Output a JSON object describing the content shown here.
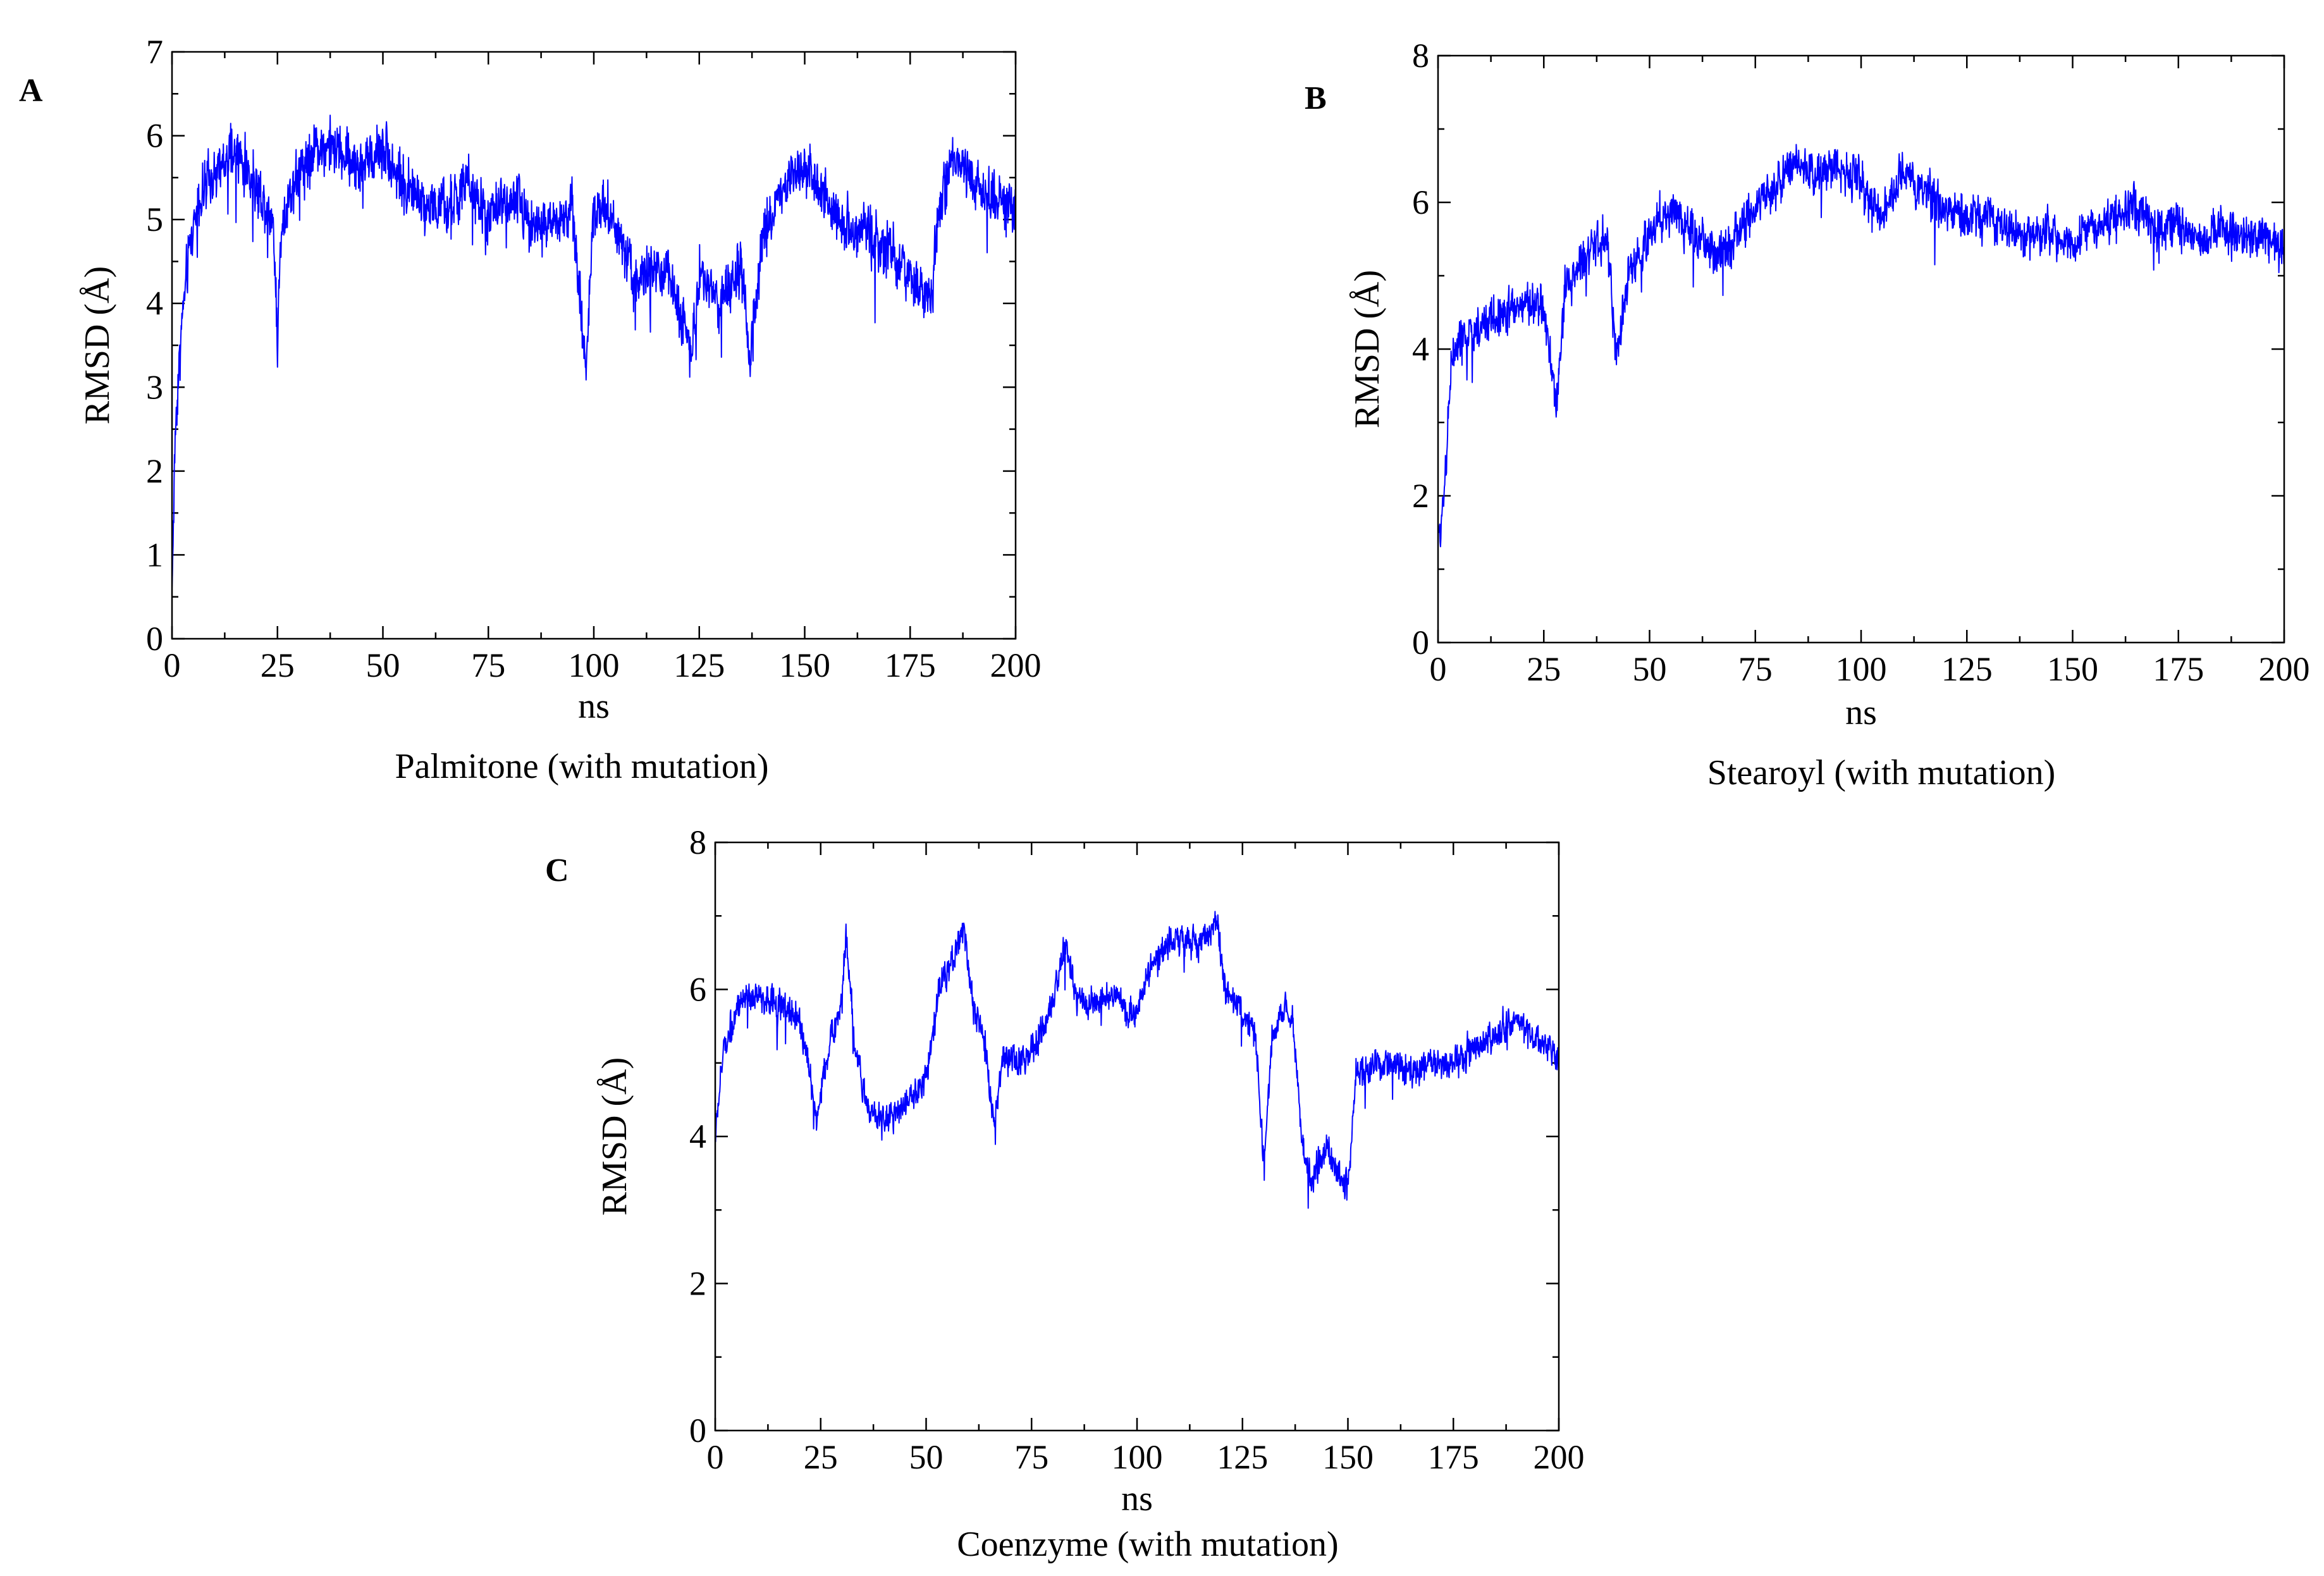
{
  "figure": {
    "panels": [
      {
        "letter": "A",
        "caption": "Palmitone (with mutation)"
      },
      {
        "letter": "B",
        "caption": "Stearoyl (with mutation)"
      },
      {
        "letter": "C",
        "caption": "Coenzyme (with mutation)"
      }
    ]
  },
  "chart_data": [
    {
      "type": "line",
      "panel": "A",
      "title": "Palmitone (with mutation)",
      "xlabel": "ns",
      "ylabel": "RMSD (Å)",
      "xlim": [
        0,
        200
      ],
      "ylim": [
        0,
        7
      ],
      "xticks": [
        0,
        25,
        50,
        75,
        100,
        125,
        150,
        175,
        200
      ],
      "yticks": [
        0,
        1,
        2,
        3,
        4,
        5,
        6,
        7
      ],
      "yminor": true,
      "grid": false,
      "series": [
        {
          "name": "RMSD",
          "color": "#0000ff",
          "noise": 0.55,
          "keypoints": [
            [
              0,
              0.6
            ],
            [
              0.8,
              2.5
            ],
            [
              2,
              3.6
            ],
            [
              4,
              4.6
            ],
            [
              6,
              5.2
            ],
            [
              10,
              5.5
            ],
            [
              15,
              5.8
            ],
            [
              20,
              5.4
            ],
            [
              24,
              5.0
            ],
            [
              25,
              3.6
            ],
            [
              26,
              5.0
            ],
            [
              30,
              5.6
            ],
            [
              35,
              5.9
            ],
            [
              40,
              5.8
            ],
            [
              45,
              5.6
            ],
            [
              50,
              5.9
            ],
            [
              55,
              5.4
            ],
            [
              60,
              5.2
            ],
            [
              65,
              5.1
            ],
            [
              70,
              5.4
            ],
            [
              75,
              5.0
            ],
            [
              80,
              5.3
            ],
            [
              85,
              5.0
            ],
            [
              90,
              4.9
            ],
            [
              95,
              5.1
            ],
            [
              98,
              3.2
            ],
            [
              100,
              5.2
            ],
            [
              105,
              5.0
            ],
            [
              110,
              4.3
            ],
            [
              115,
              4.4
            ],
            [
              120,
              4.1
            ],
            [
              123,
              3.4
            ],
            [
              125,
              4.4
            ],
            [
              130,
              4.0
            ],
            [
              135,
              4.4
            ],
            [
              137,
              3.2
            ],
            [
              140,
              4.8
            ],
            [
              145,
              5.4
            ],
            [
              150,
              5.7
            ],
            [
              155,
              5.2
            ],
            [
              160,
              4.9
            ],
            [
              165,
              4.9
            ],
            [
              170,
              4.6
            ],
            [
              175,
              4.3
            ],
            [
              180,
              4.0
            ],
            [
              182,
              5.2
            ],
            [
              185,
              5.7
            ],
            [
              190,
              5.4
            ],
            [
              195,
              5.3
            ],
            [
              200,
              5.1
            ]
          ]
        }
      ]
    },
    {
      "type": "line",
      "panel": "B",
      "title": "Stearoyl (with mutation)",
      "xlabel": "ns",
      "ylabel": "RMSD (Å)",
      "xlim": [
        0,
        200
      ],
      "ylim": [
        0,
        8
      ],
      "xticks": [
        0,
        25,
        50,
        75,
        100,
        125,
        150,
        175,
        200
      ],
      "yticks": [
        0,
        2,
        4,
        6,
        8
      ],
      "yminor": true,
      "grid": false,
      "series": [
        {
          "name": "RMSD",
          "color": "#0000ff",
          "noise": 0.5,
          "keypoints": [
            [
              0,
              1.3
            ],
            [
              1,
              1.8
            ],
            [
              2,
              2.6
            ],
            [
              3,
              3.8
            ],
            [
              5,
              4.1
            ],
            [
              10,
              4.3
            ],
            [
              15,
              4.5
            ],
            [
              20,
              4.6
            ],
            [
              25,
              4.6
            ],
            [
              28,
              3.2
            ],
            [
              30,
              4.8
            ],
            [
              35,
              5.3
            ],
            [
              40,
              5.5
            ],
            [
              42,
              3.9
            ],
            [
              45,
              5.0
            ],
            [
              50,
              5.6
            ],
            [
              55,
              5.9
            ],
            [
              60,
              5.6
            ],
            [
              65,
              5.3
            ],
            [
              70,
              5.5
            ],
            [
              75,
              5.9
            ],
            [
              80,
              6.3
            ],
            [
              85,
              6.5
            ],
            [
              90,
              6.4
            ],
            [
              95,
              6.5
            ],
            [
              100,
              6.3
            ],
            [
              105,
              5.8
            ],
            [
              110,
              6.4
            ],
            [
              115,
              6.2
            ],
            [
              120,
              5.9
            ],
            [
              125,
              5.8
            ],
            [
              130,
              5.8
            ],
            [
              135,
              5.6
            ],
            [
              140,
              5.6
            ],
            [
              145,
              5.6
            ],
            [
              150,
              5.4
            ],
            [
              155,
              5.7
            ],
            [
              160,
              5.8
            ],
            [
              165,
              5.9
            ],
            [
              170,
              5.6
            ],
            [
              175,
              5.7
            ],
            [
              180,
              5.5
            ],
            [
              185,
              5.6
            ],
            [
              190,
              5.5
            ],
            [
              195,
              5.6
            ],
            [
              200,
              5.3
            ]
          ]
        }
      ]
    },
    {
      "type": "line",
      "panel": "C",
      "title": "Coenzyme (with mutation)",
      "xlabel": "ns",
      "ylabel": "RMSD (Å)",
      "xlim": [
        0,
        200
      ],
      "ylim": [
        0,
        8
      ],
      "xticks": [
        0,
        25,
        50,
        75,
        100,
        125,
        150,
        175,
        200
      ],
      "yticks": [
        0,
        2,
        4,
        6,
        8
      ],
      "yminor": true,
      "grid": false,
      "series": [
        {
          "name": "RMSD",
          "color": "#0000ff",
          "noise": 0.35,
          "keypoints": [
            [
              0,
              4.0
            ],
            [
              2,
              5.2
            ],
            [
              5,
              5.7
            ],
            [
              10,
              5.9
            ],
            [
              15,
              5.8
            ],
            [
              20,
              5.6
            ],
            [
              22,
              5.0
            ],
            [
              24,
              4.2
            ],
            [
              26,
              5.0
            ],
            [
              30,
              5.8
            ],
            [
              31,
              6.8
            ],
            [
              33,
              5.3
            ],
            [
              36,
              4.4
            ],
            [
              40,
              4.2
            ],
            [
              45,
              4.4
            ],
            [
              50,
              4.8
            ],
            [
              53,
              6.0
            ],
            [
              57,
              6.5
            ],
            [
              59,
              6.9
            ],
            [
              61,
              5.8
            ],
            [
              64,
              5.3
            ],
            [
              66,
              4.1
            ],
            [
              68,
              5.0
            ],
            [
              72,
              5.0
            ],
            [
              76,
              5.2
            ],
            [
              80,
              5.8
            ],
            [
              83,
              6.6
            ],
            [
              86,
              5.9
            ],
            [
              90,
              5.8
            ],
            [
              95,
              5.9
            ],
            [
              100,
              5.6
            ],
            [
              103,
              6.3
            ],
            [
              107,
              6.6
            ],
            [
              111,
              6.7
            ],
            [
              115,
              6.6
            ],
            [
              119,
              6.9
            ],
            [
              121,
              6.0
            ],
            [
              125,
              5.7
            ],
            [
              128,
              5.4
            ],
            [
              130,
              3.6
            ],
            [
              132,
              5.3
            ],
            [
              135,
              5.8
            ],
            [
              137,
              5.6
            ],
            [
              139,
              4.0
            ],
            [
              141,
              3.4
            ],
            [
              145,
              3.8
            ],
            [
              150,
              3.3
            ],
            [
              152,
              4.9
            ],
            [
              155,
              4.9
            ],
            [
              160,
              5.0
            ],
            [
              165,
              4.9
            ],
            [
              170,
              5.0
            ],
            [
              175,
              5.0
            ],
            [
              180,
              5.2
            ],
            [
              185,
              5.4
            ],
            [
              190,
              5.6
            ],
            [
              195,
              5.3
            ],
            [
              200,
              5.1
            ]
          ]
        }
      ]
    }
  ]
}
